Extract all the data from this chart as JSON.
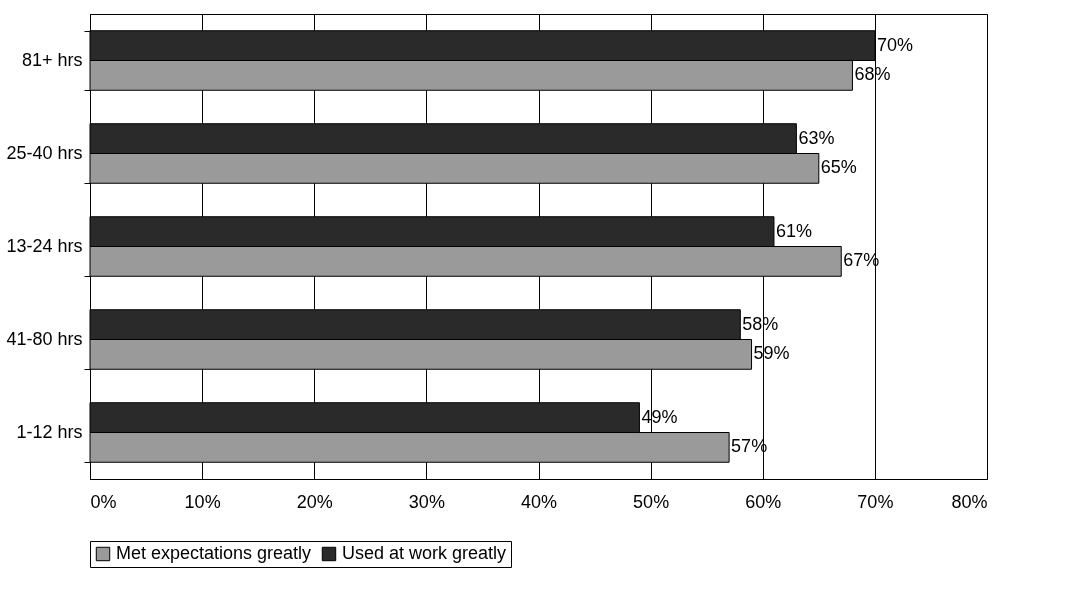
{
  "chart_data": {
    "type": "bar",
    "orientation": "horizontal",
    "categories": [
      "81+ hrs",
      "25-40 hrs",
      "13-24 hrs",
      "41-80 hrs",
      "1-12 hrs"
    ],
    "series": [
      {
        "name": "Met expectations greatly",
        "color": "#9a9a9a",
        "values": [
          68,
          65,
          67,
          59,
          57
        ],
        "value_labels": [
          "68%",
          "65%",
          "67%",
          "59%",
          "57%"
        ]
      },
      {
        "name": "Used at work greatly",
        "color": "#2a2a2a",
        "values": [
          70,
          63,
          61,
          58,
          49
        ],
        "value_labels": [
          "70%",
          "63%",
          "61%",
          "58%",
          "49%"
        ]
      }
    ],
    "xlim": [
      0,
      80
    ],
    "xticks": [
      {
        "value": 0,
        "label": "0%"
      },
      {
        "value": 10,
        "label": "10%"
      },
      {
        "value": 20,
        "label": "20%"
      },
      {
        "value": 30,
        "label": "30%"
      },
      {
        "value": 40,
        "label": "40%"
      },
      {
        "value": 50,
        "label": "50%"
      },
      {
        "value": 60,
        "label": "60%"
      },
      {
        "value": 70,
        "label": "70%"
      },
      {
        "value": 80,
        "label": "80%"
      }
    ],
    "grid": "x",
    "legend": "bottom"
  }
}
